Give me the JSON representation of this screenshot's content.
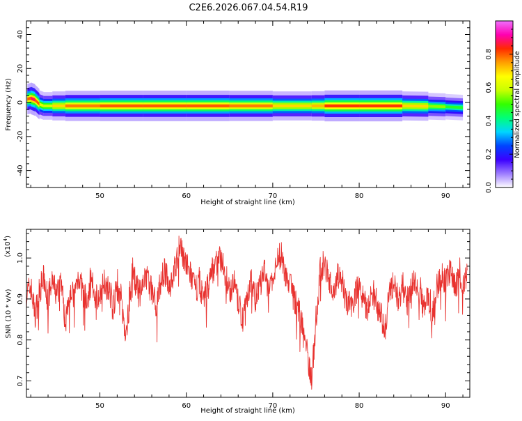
{
  "page": {
    "title": "C2E6.2026.067.04.54.R19"
  },
  "colors": {
    "background": "#ffffff",
    "axis": "#000000",
    "snr_line": "#e8322f",
    "axis_box": "#000000"
  },
  "chart_data": [
    {
      "type": "heatmap",
      "xlabel": "Height of straight line (km)",
      "ylabel": "Frequency (Hz)",
      "xlim": [
        41.5,
        92.8
      ],
      "ylim": [
        -50,
        48
      ],
      "x_ticks": [
        50,
        60,
        70,
        80,
        90
      ],
      "y_ticks": [
        -40,
        -20,
        0,
        20,
        40
      ],
      "colorbar": {
        "label": "Normalized spectral amplitude",
        "range": [
          0,
          1
        ],
        "ticks": [
          0.0,
          0.2,
          0.4,
          0.6,
          0.8
        ],
        "colormap": [
          "#ffffff",
          "#9d7cff",
          "#3b00ff",
          "#0044ff",
          "#00d5ff",
          "#00ff7a",
          "#33ff00",
          "#c8ff00",
          "#ffff00",
          "#ffa000",
          "#ff2a00",
          "#ff00b0",
          "#f070ff"
        ]
      },
      "ridge": [
        {
          "x": 41.6,
          "freq": 2.0,
          "amp": 0.75
        },
        {
          "x": 42.0,
          "freq": 2.5,
          "amp": 0.85
        },
        {
          "x": 42.5,
          "freq": 1.5,
          "amp": 0.9
        },
        {
          "x": 43.0,
          "freq": -1.0,
          "amp": 0.7
        },
        {
          "x": 43.5,
          "freq": -2.0,
          "amp": 0.55
        },
        {
          "x": 44.5,
          "freq": -2.0,
          "amp": 0.65
        },
        {
          "x": 46.0,
          "freq": -2.0,
          "amp": 0.75
        },
        {
          "x": 50.0,
          "freq": -2.0,
          "amp": 0.8
        },
        {
          "x": 55.0,
          "freq": -2.0,
          "amp": 0.8
        },
        {
          "x": 60.0,
          "freq": -2.0,
          "amp": 0.8
        },
        {
          "x": 65.0,
          "freq": -2.0,
          "amp": 0.8
        },
        {
          "x": 70.0,
          "freq": -2.0,
          "amp": 0.75
        },
        {
          "x": 74.5,
          "freq": -2.0,
          "amp": 0.65
        },
        {
          "x": 76.0,
          "freq": -2.0,
          "amp": 0.8
        },
        {
          "x": 80.0,
          "freq": -2.0,
          "amp": 0.85
        },
        {
          "x": 85.0,
          "freq": -2.0,
          "amp": 0.8
        },
        {
          "x": 88.0,
          "freq": -2.2,
          "amp": 0.6
        },
        {
          "x": 90.0,
          "freq": -2.5,
          "amp": 0.5
        },
        {
          "x": 92.0,
          "freq": -3.0,
          "amp": 0.45
        }
      ]
    },
    {
      "type": "line",
      "xlabel": "Height of straight line (km)",
      "ylabel": "SNR (10 * v/v)",
      "y_multiplier_label": "(x10",
      "y_multiplier_exp": "4",
      "xlim": [
        41.5,
        92.8
      ],
      "ylim": [
        0.66,
        1.07
      ],
      "x_ticks": [
        50,
        60,
        70,
        80,
        90
      ],
      "y_ticks": [
        0.7,
        0.8,
        0.9,
        1.0
      ],
      "series": [
        {
          "x": [
            41.5,
            42.0,
            42.5,
            43.0,
            43.5,
            44.0,
            44.5,
            45.0,
            45.5,
            46.0,
            46.5,
            47.0,
            47.5,
            48.0,
            48.5,
            49.0,
            49.5,
            50.0,
            50.5,
            51.0,
            51.5,
            52.0,
            52.5,
            53.0,
            53.5,
            54.0,
            54.5,
            55.0,
            55.5,
            56.0,
            56.5,
            57.0,
            57.5,
            58.0,
            58.5,
            59.0,
            59.5,
            60.0,
            60.5,
            61.0,
            61.5,
            62.0,
            62.5,
            63.0,
            63.5,
            64.0,
            64.5,
            65.0,
            65.5,
            66.0,
            66.5,
            67.0,
            67.5,
            68.0,
            68.5,
            69.0,
            69.5,
            70.0,
            70.5,
            71.0,
            71.5,
            72.0,
            72.5,
            73.0,
            73.5,
            74.0,
            74.5,
            75.0,
            75.5,
            76.0,
            76.5,
            77.0,
            77.5,
            78.0,
            78.5,
            79.0,
            79.5,
            80.0,
            80.5,
            81.0,
            81.5,
            82.0,
            82.5,
            83.0,
            83.5,
            84.0,
            84.5,
            85.0,
            85.5,
            86.0,
            86.5,
            87.0,
            87.5,
            88.0,
            88.5,
            89.0,
            89.5,
            90.0,
            90.5,
            91.0,
            91.5,
            92.0,
            92.5
          ],
          "values": [
            0.91,
            0.93,
            0.86,
            0.92,
            0.95,
            0.9,
            0.94,
            0.91,
            0.95,
            0.84,
            0.93,
            0.9,
            0.96,
            0.92,
            0.89,
            0.94,
            0.91,
            0.9,
            0.95,
            0.92,
            0.88,
            0.93,
            0.9,
            0.8,
            0.92,
            0.95,
            0.91,
            0.93,
            0.96,
            0.92,
            0.89,
            0.94,
            0.97,
            0.93,
            0.96,
            1.0,
            1.02,
            0.98,
            0.96,
            0.92,
            0.94,
            0.9,
            0.93,
            0.97,
            0.99,
            1.0,
            0.96,
            0.92,
            0.94,
            0.89,
            0.85,
            0.91,
            0.94,
            0.9,
            0.93,
            0.97,
            0.92,
            0.94,
            0.99,
            1.01,
            0.96,
            0.93,
            0.9,
            0.87,
            0.83,
            0.77,
            0.7,
            0.85,
            0.97,
            0.99,
            0.95,
            0.91,
            0.96,
            0.93,
            0.9,
            0.88,
            0.91,
            0.94,
            0.9,
            0.87,
            0.92,
            0.89,
            0.86,
            0.83,
            0.91,
            0.94,
            0.9,
            0.93,
            0.89,
            0.92,
            0.95,
            0.91,
            0.88,
            0.9,
            0.86,
            0.93,
            0.96,
            0.94,
            0.97,
            0.93,
            0.95,
            0.92,
            0.97
          ]
        }
      ]
    }
  ]
}
